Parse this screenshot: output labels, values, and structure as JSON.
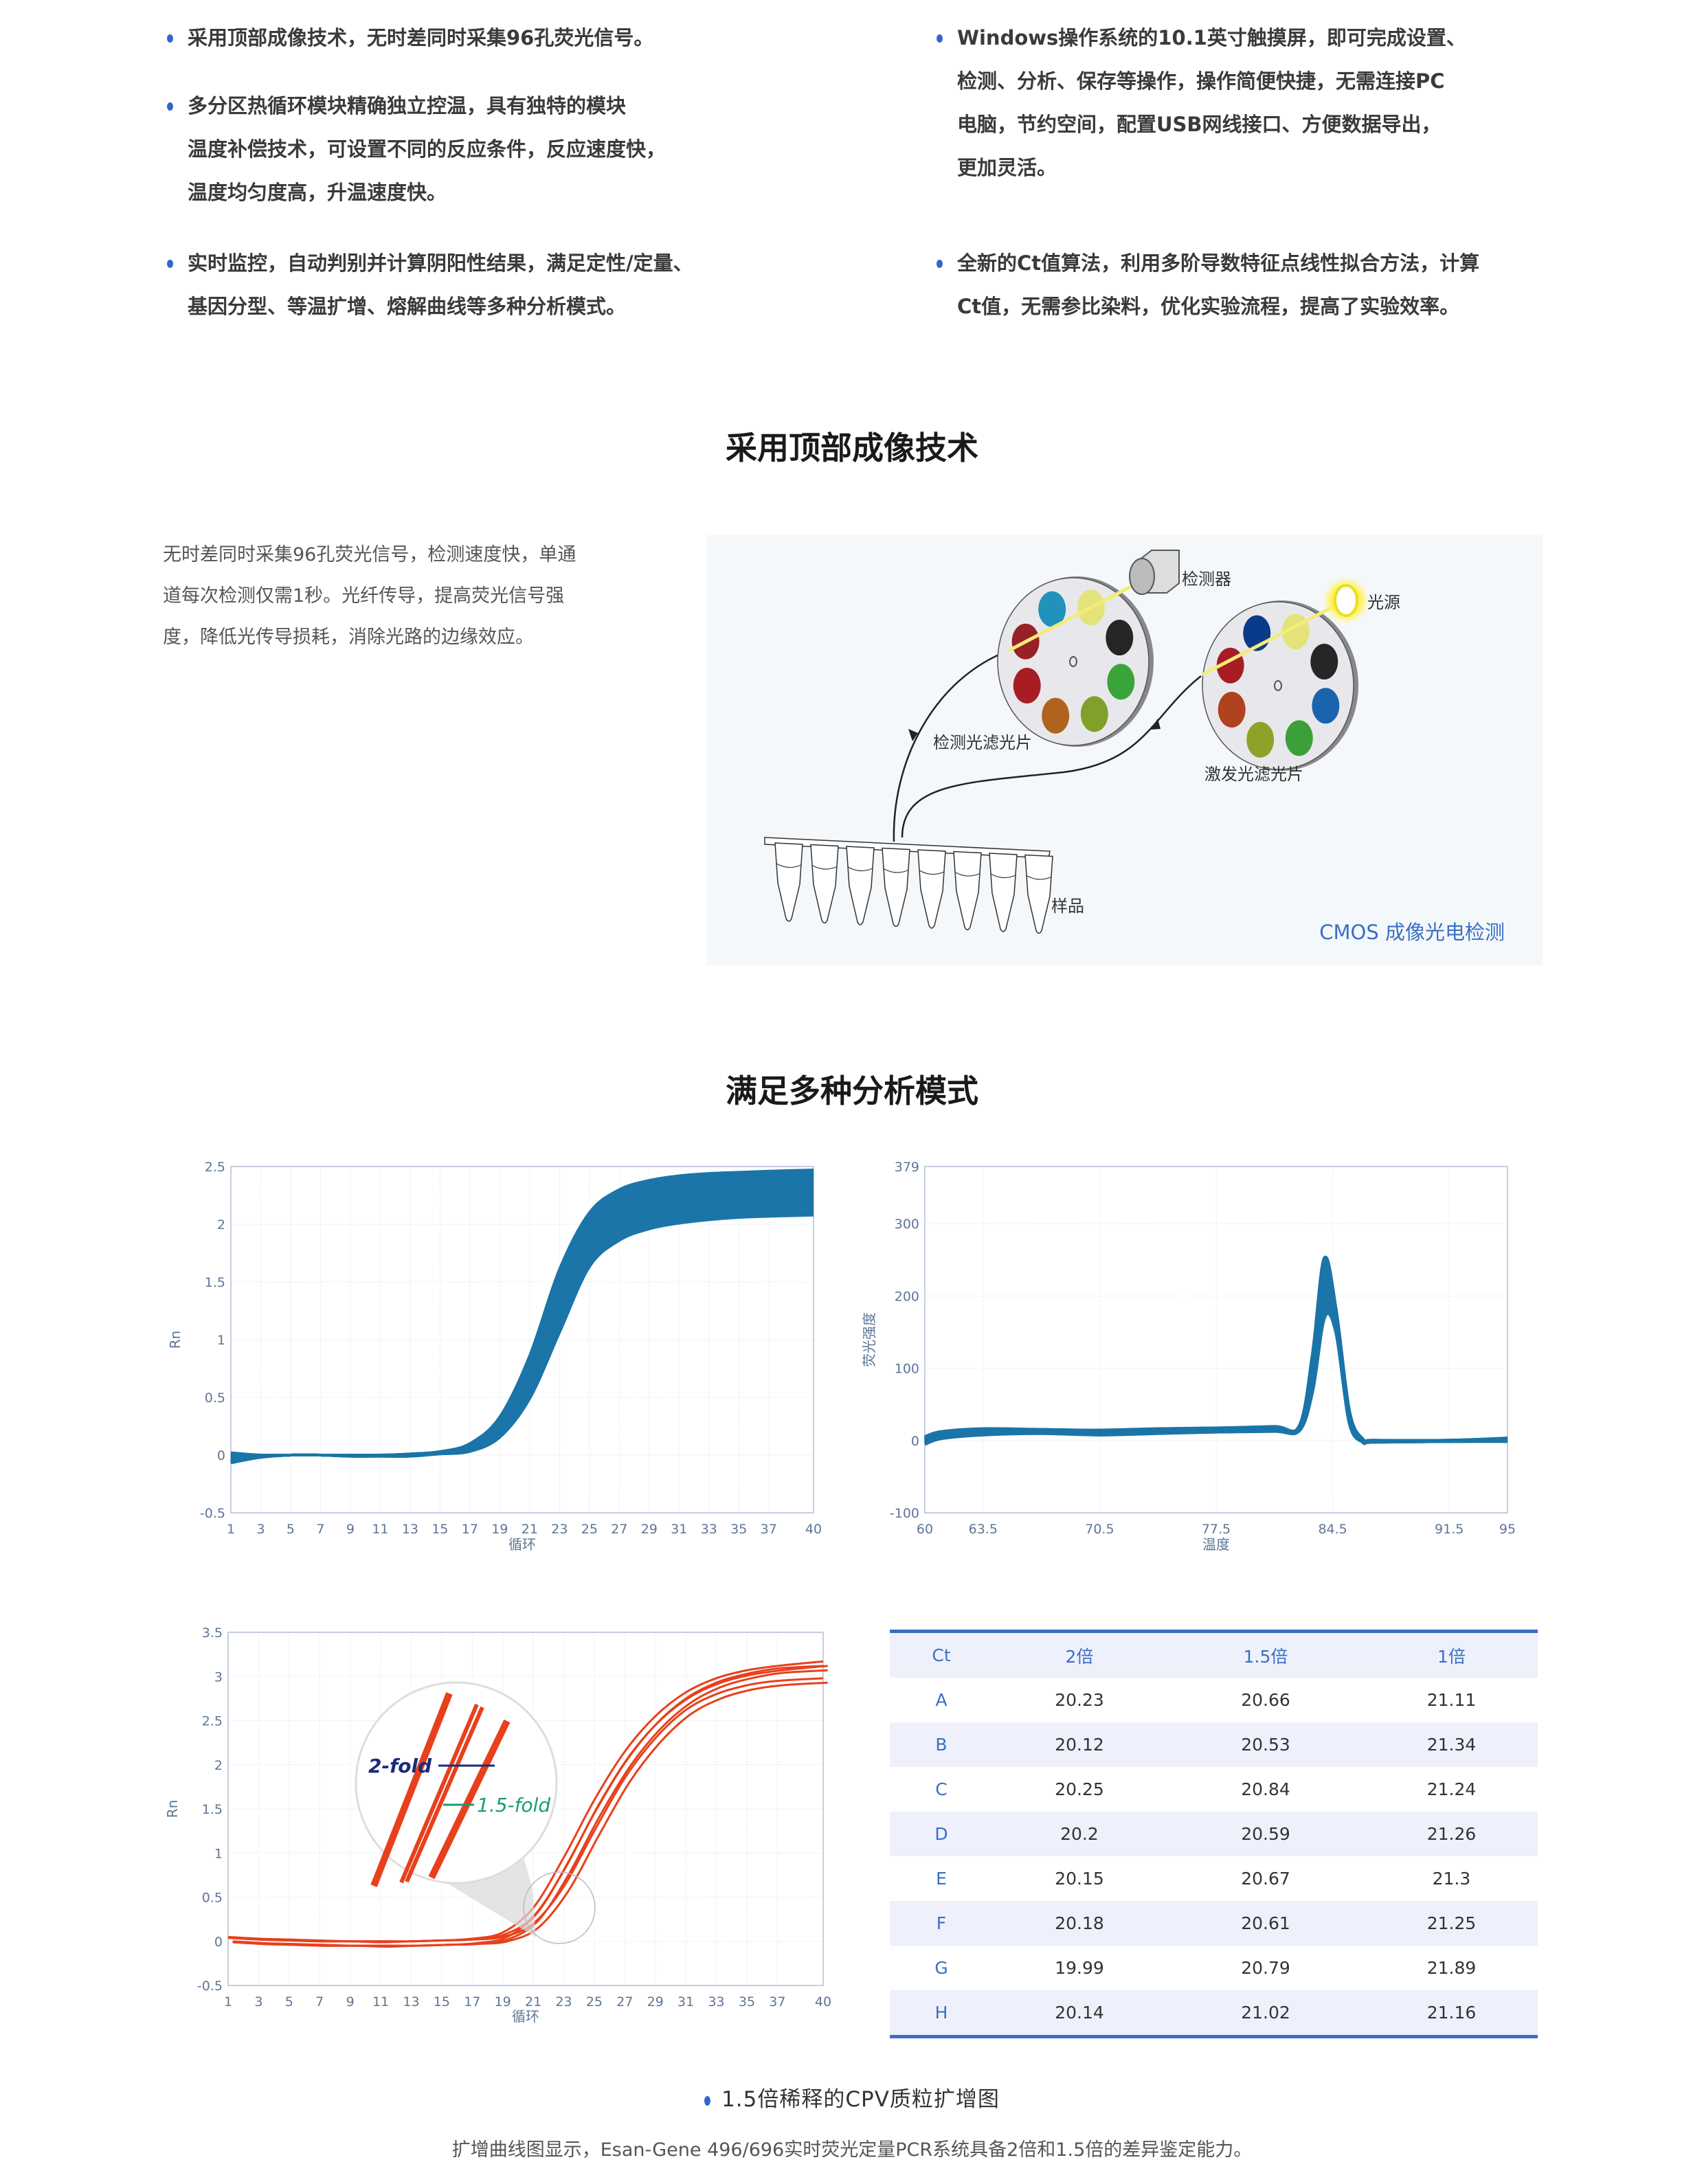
{
  "features": {
    "left": [
      {
        "lines": [
          "采用顶部成像技术，无时差同时采集96孔荧光信号。"
        ]
      },
      {
        "lines": [
          "多分区热循环模块精确独立控温，具有独特的模块",
          "温度补偿技术，可设置不同的反应条件，反应速度快，",
          "温度均匀度高，升温速度快。"
        ]
      },
      {
        "lines": [
          "实时监控，自动判别并计算阴阳性结果，满足定性/定量、",
          "基因分型、等温扩增、熔解曲线等多种分析模式。"
        ]
      }
    ],
    "right": [
      {
        "lines": [
          "Windows操作系统的10.1英寸触摸屏，即可完成设置、",
          "检测、分析、保存等操作，操作简便快捷，无需连接PC",
          "电脑，节约空间，配置USB网线接口、方便数据导出，",
          "更加灵活。"
        ]
      },
      {
        "lines": [
          "全新的Ct值算法，利用多阶导数特征点线性拟合方法，计算",
          "Ct值，无需参比染料，优化实验流程，提高了实验效率。"
        ]
      }
    ]
  },
  "section1": {
    "title": "采用顶部成像技术",
    "paragraph": [
      "无时差同时采集96孔荧光信号，检测速度快，单通",
      "道每次检测仅需1秒。光纤传导，提高荧光信号强",
      "度，降低光传导损耗，消除光路的边缘效应。"
    ],
    "diagram": {
      "detector_label": "检测器",
      "light_source_label": "光源",
      "detection_filter_label": "检测光滤光片",
      "excitation_filter_label": "激发光滤光片",
      "sample_label": "样品",
      "caption": "CMOS 成像光电检测",
      "detection_filter_colors": [
        "#2192bb",
        "#e4e37a",
        "#262626",
        "#3aa43a",
        "#7fa12a",
        "#b0621f",
        "#a81d25",
        "#962126"
      ],
      "excitation_filter_colors": [
        "#0a3a8a",
        "#e4e37a",
        "#262626",
        "#1c63ad",
        "#3c9f3a",
        "#8ea22a",
        "#b0421f",
        "#a81d25"
      ]
    }
  },
  "section2": {
    "title": "满足多种分析模式",
    "caption": "1.5倍稀释的CPV质粒扩增图",
    "subcaption": "扩增曲线图显示，Esan-Gene 496/696实时荧光定量PCR系统具备2倍和1.5倍的差异鉴定能力。"
  },
  "chart_data": [
    {
      "type": "line",
      "xlabel": "循环",
      "ylabel": "Rn",
      "xlim": [
        1,
        40
      ],
      "ylim": [
        -0.5,
        2.5
      ],
      "xticks": [
        "1",
        "3",
        "5",
        "7",
        "9",
        "11",
        "13",
        "15",
        "17",
        "19",
        "21",
        "23",
        "25",
        "27",
        "29",
        "31",
        "33",
        "35",
        "37",
        "40"
      ],
      "yticks": [
        "-0.5",
        "0",
        "0.5",
        "1",
        "1.5",
        "2",
        "2.5"
      ],
      "grid": true,
      "color": "#1b75a8",
      "x": [
        1,
        3,
        5,
        7,
        9,
        11,
        13,
        15,
        17,
        19,
        21,
        23,
        25,
        27,
        29,
        31,
        33,
        35,
        37,
        40
      ],
      "series": [
        {
          "values": [
            0.02,
            0,
            0,
            0,
            0,
            0,
            0.01,
            0.03,
            0.1,
            0.33,
            0.86,
            1.61,
            2.1,
            2.3,
            2.38,
            2.42,
            2.44,
            2.45,
            2.46,
            2.47
          ]
        },
        {
          "values": [
            -0.07,
            -0.02,
            0,
            0,
            -0.01,
            -0.01,
            -0.01,
            0.01,
            0.03,
            0.15,
            0.48,
            1.05,
            1.62,
            1.85,
            1.95,
            2.0,
            2.03,
            2.05,
            2.06,
            2.07
          ]
        }
      ]
    },
    {
      "type": "line",
      "xlabel": "温度",
      "ylabel": "荧光强度",
      "xlim": [
        60,
        95
      ],
      "ylim": [
        -100,
        379
      ],
      "xticks": [
        "60",
        "63.5",
        "70.5",
        "77.5",
        "84.5",
        "91.5",
        "95"
      ],
      "yticks": [
        "-100",
        "0",
        "100",
        "200",
        "300",
        "379"
      ],
      "grid": true,
      "color": "#1b75a8",
      "x": [
        60,
        61,
        63.5,
        67,
        70.5,
        74,
        77.5,
        81,
        82.5,
        83.3,
        84,
        84.7,
        85.5,
        86.3,
        87,
        91.5,
        95
      ],
      "series": [
        {
          "values": [
            5,
            12,
            16,
            15,
            14,
            16,
            17,
            19,
            20,
            120,
            252,
            180,
            40,
            2,
            0,
            0,
            3
          ]
        },
        {
          "values": [
            -5,
            3,
            8,
            10,
            8,
            10,
            12,
            13,
            14,
            70,
            170,
            150,
            25,
            -2,
            -2,
            -1,
            -1
          ]
        }
      ]
    },
    {
      "type": "line",
      "xlabel": "循环",
      "ylabel": "Rn",
      "xlim": [
        1,
        40
      ],
      "ylim": [
        -0.5,
        3.5
      ],
      "xticks": [
        "1",
        "3",
        "5",
        "7",
        "9",
        "11",
        "13",
        "15",
        "17",
        "19",
        "21",
        "23",
        "25",
        "27",
        "29",
        "31",
        "33",
        "35",
        "37",
        "40"
      ],
      "yticks": [
        "-0.5",
        "0",
        "0.5",
        "1",
        "1.5",
        "2",
        "2.5",
        "3",
        "3.5"
      ],
      "grid": true,
      "color": "#e8401c",
      "annotations": {
        "fold2": "2-fold",
        "fold15": "1.5-fold",
        "fold2_color": "#1c2a7a",
        "fold15_color": "#1a9a7a"
      },
      "x": [
        1,
        3,
        5,
        7,
        9,
        11,
        13,
        15,
        17,
        19,
        21,
        23,
        25,
        27,
        29,
        31,
        33,
        35,
        37,
        40
      ],
      "series": [
        {
          "values": [
            0.05,
            0.03,
            0.02,
            0.01,
            0,
            0,
            0,
            0.01,
            0.03,
            0.1,
            0.38,
            0.95,
            1.6,
            2.15,
            2.55,
            2.82,
            2.98,
            3.07,
            3.12,
            3.17
          ]
        },
        {
          "values": [
            0.04,
            0.02,
            0.01,
            0,
            0,
            0,
            0,
            0.01,
            0.02,
            0.07,
            0.28,
            0.8,
            1.45,
            2.02,
            2.45,
            2.75,
            2.93,
            3.03,
            3.09,
            3.12
          ]
        },
        {
          "values": [
            0.04,
            0.02,
            0.01,
            0,
            0,
            -0.01,
            0,
            0.01,
            0.02,
            0.05,
            0.2,
            0.62,
            1.25,
            1.85,
            2.3,
            2.62,
            2.8,
            2.9,
            2.95,
            2.98
          ]
        }
      ]
    }
  ],
  "ct_table": {
    "headers": [
      "Ct",
      "2倍",
      "1.5倍",
      "1倍"
    ],
    "rows": [
      [
        "A",
        "20.23",
        "20.66",
        "21.11"
      ],
      [
        "B",
        "20.12",
        "20.53",
        "21.34"
      ],
      [
        "C",
        "20.25",
        "20.84",
        "21.24"
      ],
      [
        "D",
        "20.2",
        "20.59",
        "21.26"
      ],
      [
        "E",
        "20.15",
        "20.67",
        "21.3"
      ],
      [
        "F",
        "20.18",
        "20.61",
        "21.25"
      ],
      [
        "G",
        "19.99",
        "20.79",
        "21.89"
      ],
      [
        "H",
        "20.14",
        "21.02",
        "21.16"
      ]
    ]
  },
  "colors": {
    "accent": "#3366cc",
    "table_accent": "#3a6fc4",
    "diagram_caption": "#3a6fc4"
  }
}
